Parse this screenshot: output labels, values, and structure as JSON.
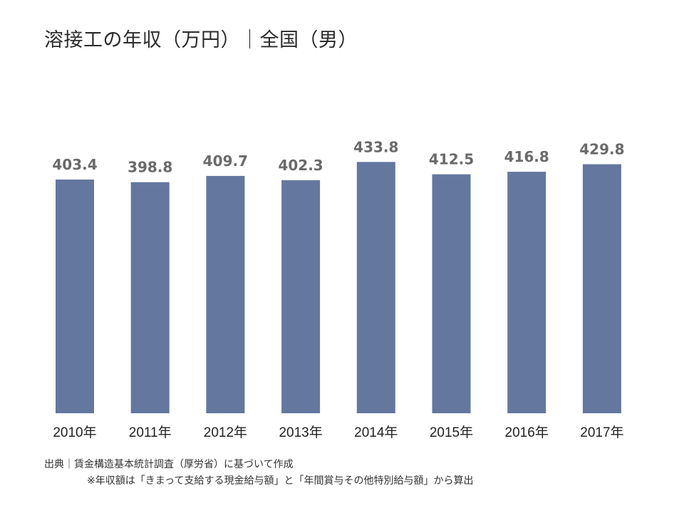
{
  "title": "溶接工の年収（万円）｜全国（男）",
  "source": "出典｜賃金構造基本統計調査（厚労省）に基づいて作成",
  "note": "※年収額は「きまって支給する現金給与額」と「年間賞与その他特別給与額」から算出",
  "colors": {
    "bar": "#64779f",
    "value_label": "#6a6a6a"
  },
  "chart_data": {
    "type": "bar",
    "categories": [
      "2010年",
      "2011年",
      "2012年",
      "2013年",
      "2014年",
      "2015年",
      "2016年",
      "2017年"
    ],
    "values": [
      403.4,
      398.8,
      409.7,
      402.3,
      433.8,
      412.5,
      416.8,
      429.8
    ],
    "value_labels": [
      "403.4",
      "398.8",
      "409.7",
      "402.3",
      "433.8",
      "412.5",
      "416.8",
      "429.8"
    ],
    "title": "溶接工の年収（万円）｜全国（男）",
    "xlabel": "",
    "ylabel": "",
    "grid": false,
    "legend": "none"
  }
}
